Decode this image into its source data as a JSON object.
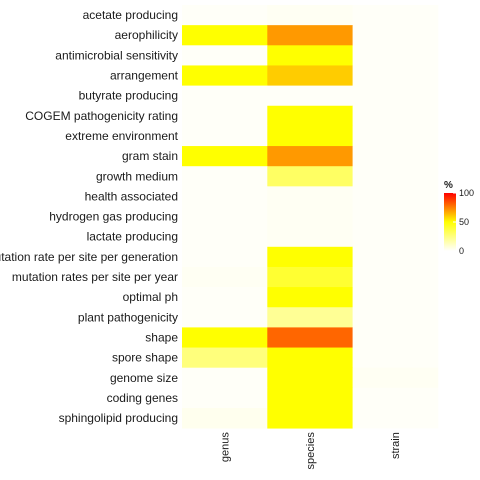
{
  "chart_data": {
    "type": "heatmap",
    "rows": [
      "acetate producing",
      "aerophilicity",
      "antimicrobial sensitivity",
      "arrangement",
      "butyrate producing",
      "COGEM pathogenicity rating",
      "extreme environment",
      "gram stain",
      "growth medium",
      "health associated",
      "hydrogen gas producing",
      "lactate producing",
      "mutation rate per site per generation",
      "mutation rates per site per year",
      "optimal ph",
      "plant pathogenicity",
      "shape",
      "spore shape",
      "genome size",
      "coding genes",
      "sphingolipid producing"
    ],
    "columns": [
      "genus",
      "species",
      "strain"
    ],
    "values": [
      [
        0,
        1,
        0
      ],
      [
        50,
        70,
        0
      ],
      [
        0,
        50,
        0
      ],
      [
        50,
        60,
        0
      ],
      [
        0,
        0,
        0
      ],
      [
        0,
        50,
        0
      ],
      [
        0,
        50,
        0
      ],
      [
        50,
        70,
        0
      ],
      [
        0,
        30,
        0
      ],
      [
        0,
        1,
        0
      ],
      [
        0,
        1,
        0
      ],
      [
        0,
        1,
        0
      ],
      [
        0,
        50,
        0
      ],
      [
        1,
        40,
        0
      ],
      [
        0,
        50,
        0
      ],
      [
        0,
        20,
        0
      ],
      [
        50,
        80,
        0
      ],
      [
        25,
        50,
        0
      ],
      [
        0,
        50,
        1
      ],
      [
        0,
        50,
        0
      ],
      [
        2,
        50,
        0
      ]
    ],
    "legend": {
      "title": "%",
      "ticks": [
        0,
        50,
        100
      ],
      "range": [
        0,
        100
      ],
      "placement": "right"
    },
    "colors": {
      "low": "#ffffff",
      "mid": "#ffff00",
      "high": "#ff0000"
    },
    "grid": false
  }
}
